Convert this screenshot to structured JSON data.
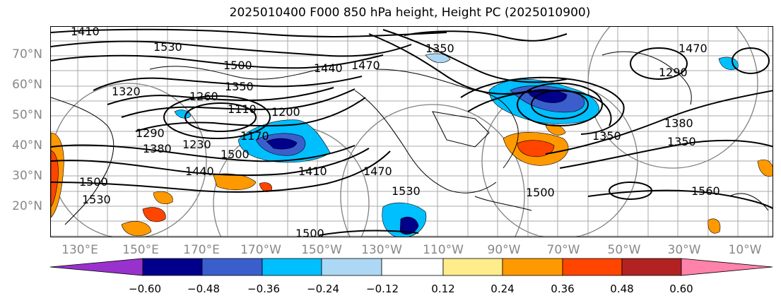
{
  "title": "2025010400 F000 850 hPa height, Height PC (2025010900)",
  "lat_labels": [
    "70°N",
    "60°N",
    "50°N",
    "40°N",
    "30°N",
    "20°N"
  ],
  "lon_labels": [
    "130°E",
    "150°E",
    "170°E",
    "170°W",
    "150°W",
    "130°W",
    "110°W",
    "90°W",
    "70°W",
    "50°W",
    "30°W",
    "10°W"
  ],
  "colorbar": {
    "colors": [
      "#9932cc",
      "#00008b",
      "#3a5fcd",
      "#00bfff",
      "#add8f5",
      "#ffffff",
      "#ffec8b",
      "#ff9900",
      "#ff4500",
      "#b22222",
      "#ff82ab",
      "#ff82ab"
    ],
    "labels": [
      "−0.60",
      "−0.48",
      "−0.36",
      "−0.24",
      "−0.12",
      "0.12",
      "0.24",
      "0.36",
      "0.48",
      "0.60"
    ]
  },
  "contour_labels": [
    "1410",
    "1530",
    "1500",
    "1320",
    "1260",
    "1350",
    "1440",
    "1290",
    "1380",
    "1440",
    "1230",
    "1200",
    "1110",
    "1170",
    "1410",
    "1470",
    "1500",
    "1530",
    "1500",
    "1350",
    "1470",
    "1380",
    "1350",
    "1560",
    "1350",
    "1290",
    "1530",
    "1500",
    "1470",
    "1500"
  ]
}
